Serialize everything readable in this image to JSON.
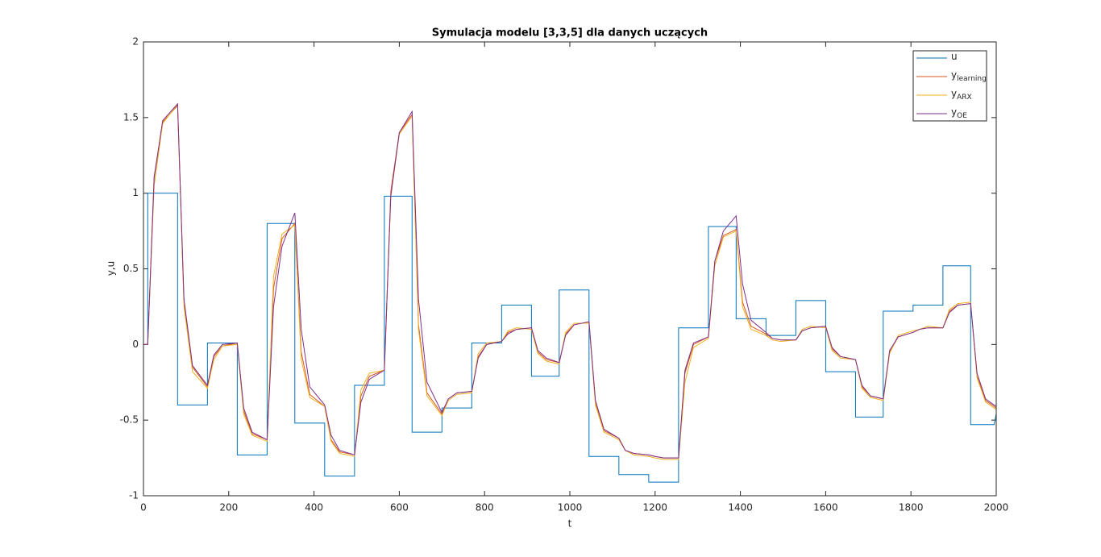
{
  "chart_data": {
    "type": "line",
    "title": "Symulacja modelu [3,3,5] dla danych uczących",
    "xlabel": "t",
    "ylabel": "y,u",
    "xlim": [
      0,
      2000
    ],
    "ylim": [
      -1,
      2
    ],
    "xticks": [
      0,
      200,
      400,
      600,
      800,
      1000,
      1200,
      1400,
      1600,
      1800,
      2000
    ],
    "yticks": [
      -1,
      -0.5,
      0,
      0.5,
      1,
      1.5,
      2
    ],
    "legend": "upper right",
    "series": [
      {
        "name": "u",
        "color": "#0072BD",
        "x": [
          0,
          10,
          10,
          80,
          80,
          150,
          150,
          220,
          220,
          290,
          290,
          355,
          355,
          425,
          425,
          495,
          495,
          565,
          565,
          630,
          630,
          700,
          700,
          770,
          770,
          840,
          840,
          910,
          910,
          975,
          975,
          1045,
          1045,
          1115,
          1115,
          1185,
          1185,
          1255,
          1255,
          1325,
          1325,
          1390,
          1390,
          1460,
          1460,
          1530,
          1530,
          1600,
          1600,
          1670,
          1670,
          1735,
          1735,
          1805,
          1805,
          1875,
          1875,
          1940,
          1940,
          1995,
          2000
        ],
        "values": [
          0,
          0,
          1.0,
          1.0,
          -0.4,
          -0.4,
          0.01,
          0.01,
          -0.73,
          -0.73,
          0.8,
          0.8,
          -0.52,
          -0.52,
          -0.87,
          -0.87,
          -0.27,
          -0.27,
          0.98,
          0.98,
          -0.58,
          -0.58,
          -0.42,
          -0.42,
          0.01,
          0.01,
          0.26,
          0.26,
          -0.21,
          -0.21,
          0.36,
          0.36,
          -0.74,
          -0.74,
          -0.86,
          -0.86,
          -0.91,
          -0.91,
          0.11,
          0.11,
          0.78,
          0.78,
          0.17,
          0.17,
          0.06,
          0.06,
          0.29,
          0.29,
          -0.18,
          -0.18,
          -0.48,
          -0.48,
          0.22,
          0.22,
          0.26,
          0.26,
          0.52,
          0.52,
          -0.53,
          -0.53,
          -0.46
        ]
      },
      {
        "name": "y",
        "subscript": "learning",
        "color": "#D95319",
        "x": [
          0,
          10,
          25,
          45,
          80,
          95,
          115,
          150,
          165,
          185,
          220,
          235,
          255,
          290,
          305,
          325,
          355,
          370,
          390,
          425,
          440,
          460,
          495,
          510,
          530,
          565,
          580,
          600,
          630,
          645,
          665,
          700,
          715,
          735,
          770,
          785,
          805,
          840,
          855,
          875,
          910,
          925,
          945,
          975,
          990,
          1010,
          1045,
          1060,
          1080,
          1115,
          1130,
          1150,
          1185,
          1200,
          1220,
          1255,
          1270,
          1290,
          1325,
          1340,
          1360,
          1390,
          1405,
          1425,
          1460,
          1475,
          1495,
          1530,
          1545,
          1565,
          1600,
          1615,
          1635,
          1670,
          1685,
          1705,
          1735,
          1750,
          1770,
          1805,
          1820,
          1840,
          1875,
          1890,
          1910,
          1940,
          1955,
          1975,
          2000
        ],
        "values": [
          0,
          0,
          1.11,
          1.47,
          1.58,
          0.28,
          -0.15,
          -0.28,
          -0.08,
          -0.01,
          0.01,
          -0.44,
          -0.59,
          -0.63,
          0.37,
          0.7,
          0.8,
          -0.05,
          -0.33,
          -0.41,
          -0.63,
          -0.71,
          -0.73,
          -0.34,
          -0.21,
          -0.17,
          1.01,
          1.4,
          1.52,
          0.13,
          -0.32,
          -0.46,
          -0.36,
          -0.32,
          -0.31,
          -0.08,
          0.0,
          0.02,
          0.08,
          0.1,
          0.11,
          -0.05,
          -0.1,
          -0.12,
          0.07,
          0.13,
          0.15,
          -0.39,
          -0.57,
          -0.62,
          -0.7,
          -0.72,
          -0.73,
          -0.74,
          -0.75,
          -0.75,
          -0.19,
          0.0,
          0.05,
          0.55,
          0.72,
          0.76,
          0.28,
          0.12,
          0.07,
          0.04,
          0.03,
          0.03,
          0.09,
          0.11,
          0.12,
          -0.03,
          -0.08,
          -0.1,
          -0.28,
          -0.34,
          -0.36,
          -0.05,
          0.05,
          0.08,
          0.1,
          0.11,
          0.11,
          0.22,
          0.26,
          0.27,
          -0.21,
          -0.37,
          -0.42
        ]
      },
      {
        "name": "y",
        "subscript": "ARX",
        "color": "#EDB120",
        "x": [
          0,
          10,
          25,
          45,
          80,
          95,
          115,
          150,
          165,
          185,
          220,
          235,
          255,
          290,
          305,
          325,
          355,
          370,
          390,
          425,
          440,
          460,
          495,
          510,
          530,
          565,
          580,
          600,
          630,
          645,
          665,
          700,
          715,
          735,
          770,
          785,
          805,
          840,
          855,
          875,
          910,
          925,
          945,
          975,
          990,
          1010,
          1045,
          1060,
          1080,
          1115,
          1130,
          1150,
          1185,
          1200,
          1220,
          1255,
          1270,
          1290,
          1325,
          1340,
          1360,
          1390,
          1405,
          1425,
          1460,
          1475,
          1495,
          1530,
          1545,
          1565,
          1600,
          1615,
          1635,
          1670,
          1685,
          1705,
          1735,
          1750,
          1770,
          1805,
          1820,
          1840,
          1875,
          1890,
          1910,
          1940,
          1955,
          1975,
          2000
        ],
        "values": [
          0,
          0,
          1.05,
          1.46,
          1.59,
          0.25,
          -0.18,
          -0.29,
          -0.1,
          -0.01,
          0.0,
          -0.46,
          -0.6,
          -0.64,
          0.45,
          0.73,
          0.79,
          -0.1,
          -0.35,
          -0.41,
          -0.64,
          -0.72,
          -0.74,
          -0.3,
          -0.19,
          -0.17,
          0.98,
          1.39,
          1.51,
          0.1,
          -0.34,
          -0.47,
          -0.37,
          -0.33,
          -0.32,
          -0.06,
          0.01,
          0.02,
          0.09,
          0.11,
          0.1,
          -0.06,
          -0.11,
          -0.13,
          0.08,
          0.14,
          0.14,
          -0.4,
          -0.58,
          -0.63,
          -0.7,
          -0.73,
          -0.74,
          -0.75,
          -0.76,
          -0.76,
          -0.25,
          -0.02,
          0.04,
          0.52,
          0.71,
          0.75,
          0.25,
          0.1,
          0.06,
          0.03,
          0.02,
          0.03,
          0.1,
          0.12,
          0.11,
          -0.04,
          -0.09,
          -0.1,
          -0.29,
          -0.35,
          -0.37,
          -0.06,
          0.06,
          0.09,
          0.1,
          0.12,
          0.11,
          0.23,
          0.27,
          0.28,
          -0.22,
          -0.38,
          -0.43
        ]
      },
      {
        "name": "y",
        "subscript": "OE",
        "color": "#7E2F8E",
        "x": [
          0,
          10,
          25,
          45,
          80,
          95,
          115,
          150,
          165,
          185,
          220,
          235,
          255,
          290,
          305,
          325,
          355,
          370,
          390,
          425,
          440,
          460,
          495,
          510,
          530,
          565,
          580,
          600,
          630,
          645,
          665,
          700,
          715,
          735,
          770,
          785,
          805,
          840,
          855,
          875,
          910,
          925,
          945,
          975,
          990,
          1010,
          1045,
          1060,
          1080,
          1115,
          1130,
          1150,
          1185,
          1200,
          1220,
          1255,
          1270,
          1290,
          1325,
          1340,
          1360,
          1390,
          1405,
          1425,
          1460,
          1475,
          1495,
          1530,
          1545,
          1565,
          1600,
          1615,
          1635,
          1670,
          1685,
          1705,
          1735,
          1750,
          1770,
          1805,
          1820,
          1840,
          1875,
          1890,
          1910,
          1940,
          1955,
          1975,
          2000
        ],
        "values": [
          0,
          0,
          1.1,
          1.48,
          1.59,
          0.3,
          -0.14,
          -0.27,
          -0.07,
          0.0,
          0.01,
          -0.42,
          -0.58,
          -0.63,
          0.25,
          0.65,
          0.87,
          0.1,
          -0.28,
          -0.4,
          -0.6,
          -0.7,
          -0.73,
          -0.38,
          -0.23,
          -0.17,
          0.98,
          1.4,
          1.54,
          0.3,
          -0.25,
          -0.45,
          -0.36,
          -0.32,
          -0.31,
          -0.09,
          0.0,
          0.02,
          0.07,
          0.1,
          0.11,
          -0.04,
          -0.09,
          -0.12,
          0.06,
          0.13,
          0.15,
          -0.37,
          -0.56,
          -0.62,
          -0.7,
          -0.72,
          -0.73,
          -0.74,
          -0.75,
          -0.75,
          -0.17,
          0.01,
          0.05,
          0.55,
          0.75,
          0.85,
          0.4,
          0.16,
          0.08,
          0.04,
          0.03,
          0.03,
          0.09,
          0.11,
          0.12,
          -0.02,
          -0.08,
          -0.1,
          -0.27,
          -0.34,
          -0.36,
          -0.04,
          0.05,
          0.08,
          0.1,
          0.11,
          0.11,
          0.21,
          0.26,
          0.27,
          -0.19,
          -0.36,
          -0.41
        ]
      }
    ]
  }
}
